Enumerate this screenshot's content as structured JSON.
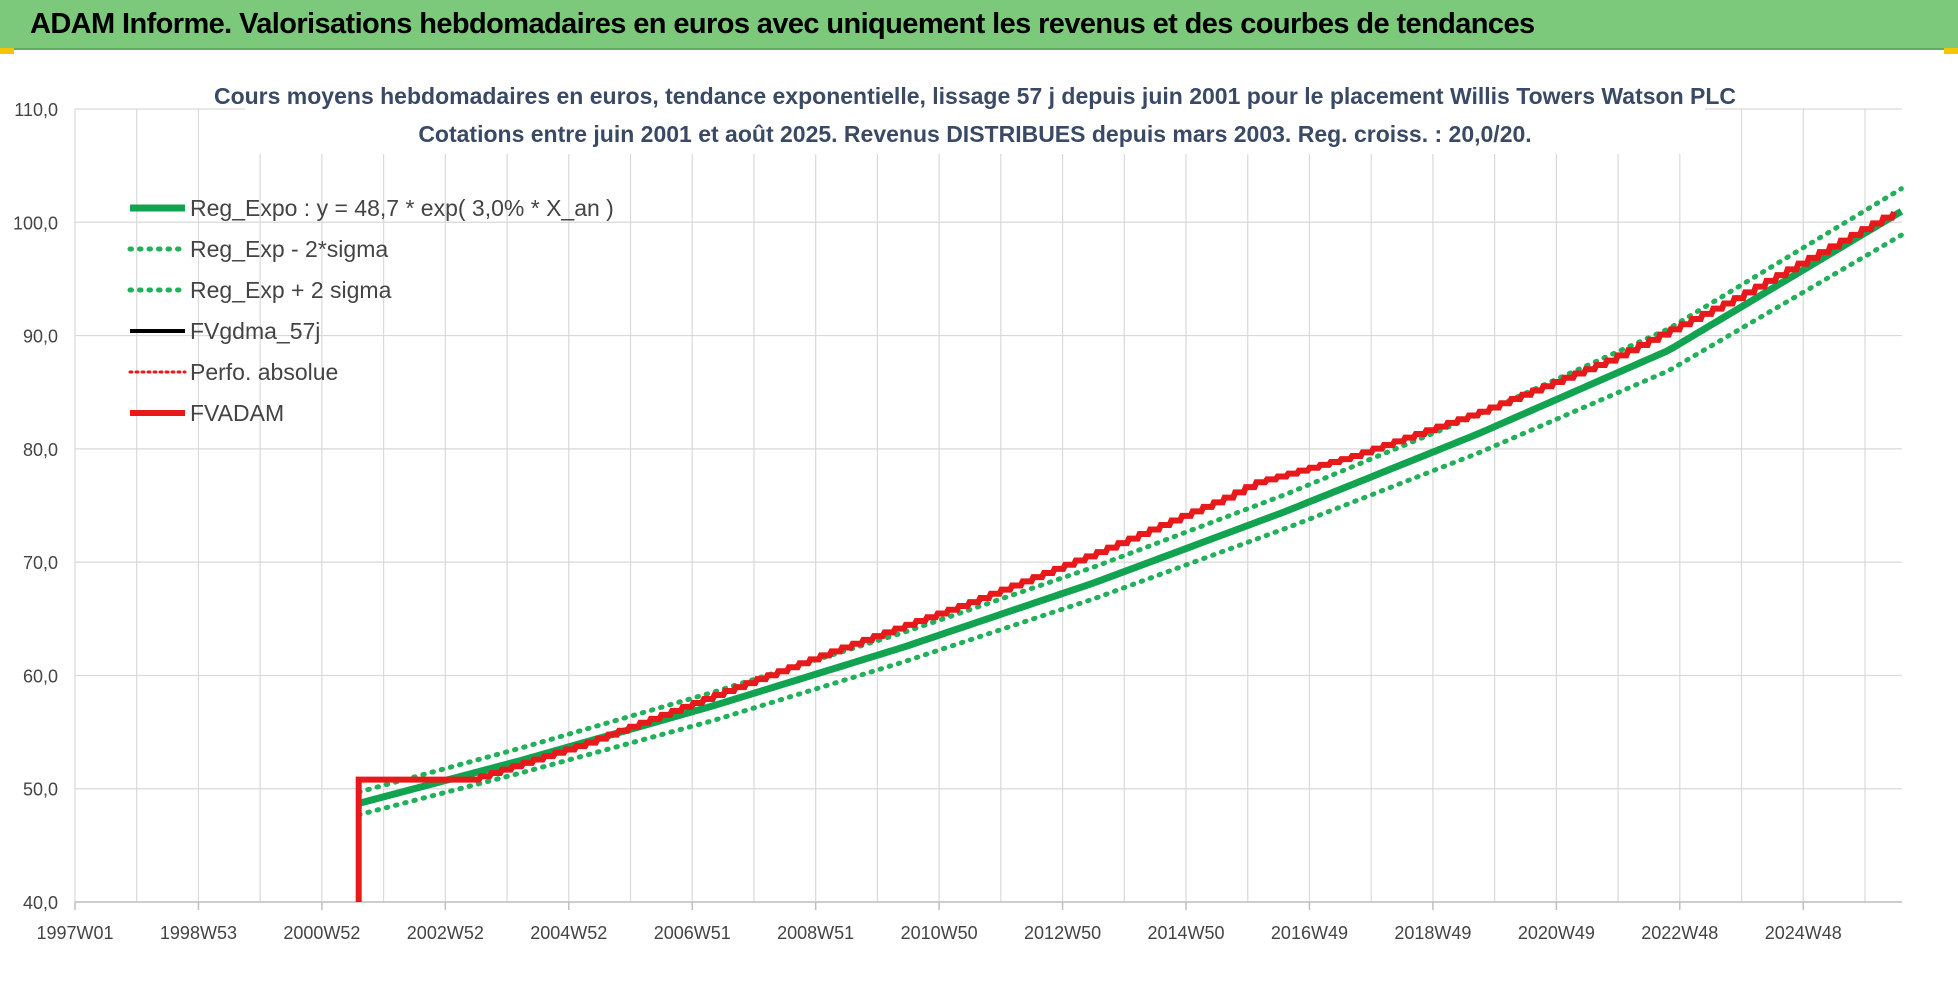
{
  "header": {
    "title": "ADAM Informe. Valorisations hebdomadaires en euros avec uniquement les revenus et des courbes de tendances"
  },
  "colors": {
    "banner": "#7dc97c",
    "reg_green": "#12a350",
    "reg_dotted_green": "#22b05a",
    "fvgdma_black": "#000000",
    "perfo_dotted_red": "#e8191b",
    "fvadam_red": "#e8191b",
    "grid": "#d9d9d9"
  },
  "chart_data": {
    "type": "line",
    "title": "Cours moyens hebdomadaires en euros, tendance exponentielle, lissage 57 j depuis juin 2001 pour le placement Willis Towers Watson PLC",
    "subtitle": "Cotations entre juin 2001 et août 2025. Revenus DISTRIBUES depuis mars 2003. Reg. croiss. : 20,0/20.",
    "xlabel": "",
    "ylabel": "",
    "x_ticks": [
      "1997W01",
      "1998W53",
      "2000W52",
      "2002W52",
      "2004W52",
      "2006W51",
      "2008W51",
      "2010W50",
      "2012W50",
      "2014W50",
      "2016W49",
      "2018W49",
      "2020W49",
      "2022W48",
      "2024W48"
    ],
    "xlim": [
      1997.0,
      2025.66
    ],
    "ylim": [
      40,
      110
    ],
    "y_ticks": [
      "40,0",
      "50,0",
      "60,0",
      "70,0",
      "80,0",
      "90,0",
      "100,0",
      "110,0"
    ],
    "grid": true,
    "legend_position": "top-left",
    "series": [
      {
        "name": "Reg_Expo : y = 48,7 * exp( 3,0% *  X_an )",
        "style": "solid-thick-green",
        "x": [
          2001.45,
          2004.0,
          2007.0,
          2010.0,
          2013.0,
          2016.0,
          2019.0,
          2022.0,
          2025.66
        ],
        "y": [
          48.7,
          52.5,
          57.3,
          62.5,
          68.2,
          74.5,
          81.3,
          88.7,
          101.0
        ]
      },
      {
        "name": "Reg_Exp - 2*sigma",
        "style": "dotted-green",
        "x": [
          2001.45,
          2004.0,
          2007.0,
          2010.0,
          2013.0,
          2016.0,
          2019.0,
          2022.0,
          2025.66
        ],
        "y": [
          47.7,
          51.4,
          56.0,
          61.2,
          66.8,
          73.0,
          79.6,
          86.9,
          98.9
        ]
      },
      {
        "name": "Reg_Exp + 2 sigma",
        "style": "dotted-green",
        "x": [
          2001.45,
          2004.0,
          2007.0,
          2010.0,
          2013.0,
          2016.0,
          2019.0,
          2022.0,
          2025.66
        ],
        "y": [
          49.7,
          53.6,
          58.5,
          63.8,
          69.6,
          76.0,
          83.0,
          90.6,
          103.0
        ]
      },
      {
        "name": "FVgdma_57j",
        "style": "solid-black",
        "x": [],
        "y": []
      },
      {
        "name": "Perfo. absolue",
        "style": "dotted-red",
        "x": [],
        "y": []
      },
      {
        "name": "FVADAM",
        "style": "solid-thick-red",
        "x": [
          2001.45,
          2001.45,
          2003.2,
          2005.0,
          2007.0,
          2009.0,
          2011.0,
          2013.0,
          2015.0,
          2015.5,
          2017.0,
          2019.0,
          2021.0,
          2023.0,
          2025.66
        ],
        "y": [
          40.0,
          50.8,
          50.8,
          54.0,
          58.2,
          62.4,
          66.4,
          70.8,
          75.6,
          77.0,
          79.3,
          83.2,
          87.7,
          93.2,
          101.3
        ]
      }
    ]
  }
}
